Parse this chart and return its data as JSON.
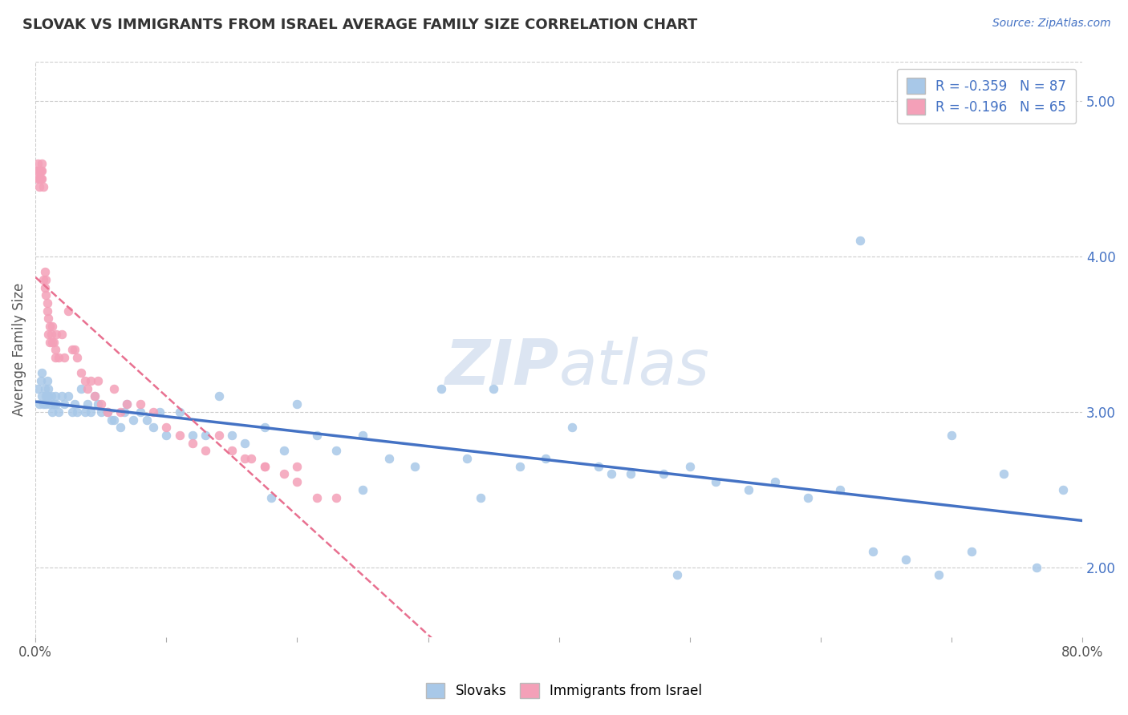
{
  "title": "SLOVAK VS IMMIGRANTS FROM ISRAEL AVERAGE FAMILY SIZE CORRELATION CHART",
  "source_text": "Source: ZipAtlas.com",
  "ylabel": "Average Family Size",
  "right_yticks": [
    2.0,
    3.0,
    4.0,
    5.0
  ],
  "xmin": 0.0,
  "xmax": 0.8,
  "ymin": 1.55,
  "ymax": 5.25,
  "series1_name": "Slovaks",
  "series2_name": "Immigrants from Israel",
  "series1_color": "#a8c8e8",
  "series2_color": "#f4a0b8",
  "trendline1_color": "#4472c4",
  "trendline2_color": "#e87090",
  "watermark_zip": "ZIP",
  "watermark_atlas": "atlas",
  "legend_patch1_color": "#a8c8e8",
  "legend_patch2_color": "#f4a0b8",
  "legend_text1": "R = -0.359   N = 87",
  "legend_text2": "R = -0.196   N = 65",
  "scatter1_x": [
    0.002,
    0.003,
    0.004,
    0.005,
    0.005,
    0.006,
    0.007,
    0.008,
    0.008,
    0.009,
    0.01,
    0.01,
    0.011,
    0.012,
    0.013,
    0.014,
    0.015,
    0.016,
    0.018,
    0.02,
    0.022,
    0.025,
    0.028,
    0.03,
    0.032,
    0.035,
    0.038,
    0.04,
    0.042,
    0.045,
    0.048,
    0.05,
    0.055,
    0.058,
    0.06,
    0.065,
    0.068,
    0.07,
    0.075,
    0.08,
    0.085,
    0.09,
    0.095,
    0.1,
    0.11,
    0.12,
    0.13,
    0.14,
    0.15,
    0.16,
    0.175,
    0.19,
    0.2,
    0.215,
    0.23,
    0.25,
    0.27,
    0.29,
    0.31,
    0.33,
    0.35,
    0.37,
    0.39,
    0.41,
    0.43,
    0.455,
    0.48,
    0.5,
    0.52,
    0.545,
    0.565,
    0.59,
    0.615,
    0.64,
    0.665,
    0.69,
    0.715,
    0.74,
    0.765,
    0.785,
    0.63,
    0.18,
    0.25,
    0.34,
    0.44,
    0.49,
    0.7
  ],
  "scatter1_y": [
    3.15,
    3.05,
    3.2,
    3.1,
    3.25,
    3.05,
    3.15,
    3.1,
    3.05,
    3.2,
    3.1,
    3.15,
    3.05,
    3.1,
    3.0,
    3.05,
    3.1,
    3.05,
    3.0,
    3.1,
    3.05,
    3.1,
    3.0,
    3.05,
    3.0,
    3.15,
    3.0,
    3.05,
    3.0,
    3.1,
    3.05,
    3.0,
    3.0,
    2.95,
    2.95,
    2.9,
    3.0,
    3.05,
    2.95,
    3.0,
    2.95,
    2.9,
    3.0,
    2.85,
    3.0,
    2.85,
    2.85,
    3.1,
    2.85,
    2.8,
    2.9,
    2.75,
    3.05,
    2.85,
    2.75,
    2.85,
    2.7,
    2.65,
    3.15,
    2.7,
    3.15,
    2.65,
    2.7,
    2.9,
    2.65,
    2.6,
    2.6,
    2.65,
    2.55,
    2.5,
    2.55,
    2.45,
    2.5,
    2.1,
    2.05,
    1.95,
    2.1,
    2.6,
    2.0,
    2.5,
    4.1,
    2.45,
    2.5,
    2.45,
    2.6,
    1.95,
    2.85
  ],
  "scatter2_x": [
    0.001,
    0.002,
    0.002,
    0.003,
    0.003,
    0.003,
    0.004,
    0.004,
    0.005,
    0.005,
    0.005,
    0.006,
    0.006,
    0.007,
    0.007,
    0.008,
    0.008,
    0.009,
    0.009,
    0.01,
    0.01,
    0.011,
    0.011,
    0.012,
    0.013,
    0.013,
    0.014,
    0.015,
    0.015,
    0.016,
    0.018,
    0.02,
    0.022,
    0.025,
    0.028,
    0.03,
    0.032,
    0.035,
    0.038,
    0.04,
    0.042,
    0.045,
    0.048,
    0.05,
    0.055,
    0.06,
    0.065,
    0.07,
    0.08,
    0.09,
    0.1,
    0.11,
    0.12,
    0.13,
    0.14,
    0.15,
    0.16,
    0.175,
    0.19,
    0.2,
    0.215,
    0.23,
    0.2,
    0.175,
    0.165
  ],
  "scatter2_y": [
    4.55,
    4.5,
    4.6,
    4.55,
    4.5,
    4.45,
    4.55,
    4.5,
    4.6,
    4.55,
    4.5,
    4.45,
    3.85,
    3.8,
    3.9,
    3.75,
    3.85,
    3.7,
    3.65,
    3.6,
    3.5,
    3.55,
    3.45,
    3.5,
    3.45,
    3.55,
    3.45,
    3.4,
    3.35,
    3.5,
    3.35,
    3.5,
    3.35,
    3.65,
    3.4,
    3.4,
    3.35,
    3.25,
    3.2,
    3.15,
    3.2,
    3.1,
    3.2,
    3.05,
    3.0,
    3.15,
    3.0,
    3.05,
    3.05,
    3.0,
    2.9,
    2.85,
    2.8,
    2.75,
    2.85,
    2.75,
    2.7,
    2.65,
    2.6,
    2.55,
    2.45,
    2.45,
    2.65,
    2.65,
    2.7
  ]
}
